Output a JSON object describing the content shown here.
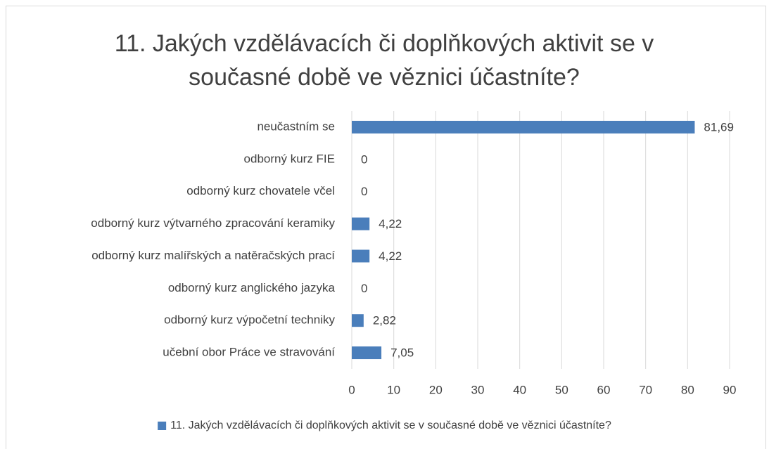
{
  "chart_data": {
    "type": "bar",
    "orientation": "horizontal",
    "title": "11. Jakých vzdělávacích či doplňkových aktivit se v současné době ve věznici účastníte?",
    "categories": [
      "neučastním se",
      "odborný kurz FIE",
      "odborný kurz chovatele včel",
      "odborný kurz výtvarného zpracování keramiky",
      "odborný kurz malířských a natěračských prací",
      "odborný kurz anglického jazyka",
      "odborný kurz výpočetní techniky",
      "učební obor Práce ve stravování"
    ],
    "series": [
      {
        "name": "11. Jakých vzdělávacích či doplňkových aktivit se v současné době ve věznici účastníte?",
        "color": "#4a7ebb",
        "values": [
          81.69,
          0,
          0,
          4.22,
          4.22,
          0,
          2.82,
          7.05
        ],
        "value_labels": [
          "81,69",
          "0",
          "0",
          "4,22",
          "4,22",
          "0",
          "2,82",
          "7,05"
        ]
      }
    ],
    "xlim": [
      0,
      90
    ],
    "xticks": [
      0,
      10,
      20,
      30,
      40,
      50,
      60,
      70,
      80,
      90
    ],
    "grid": true,
    "legend": "bottom"
  }
}
